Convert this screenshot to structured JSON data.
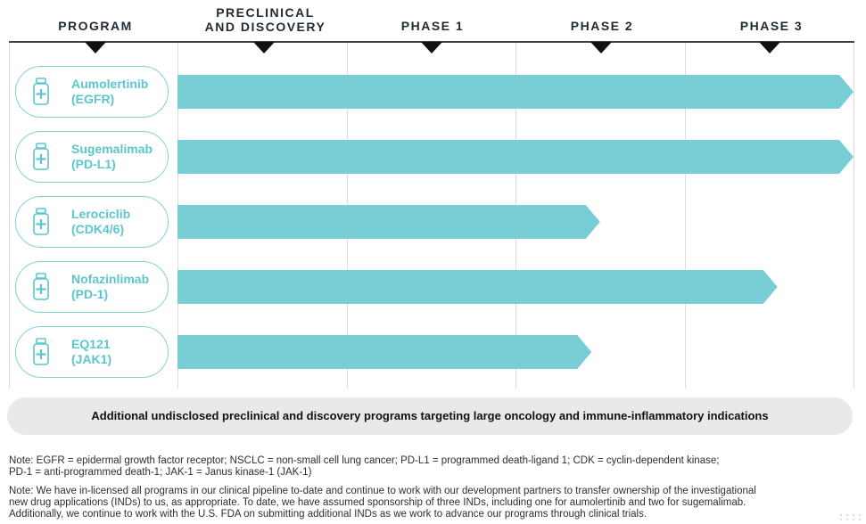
{
  "headers": {
    "program": "PROGRAM",
    "preclinical_line1": "PRECLINICAL",
    "preclinical_line2": "AND DISCOVERY",
    "phase1": "PHASE 1",
    "phase2": "PHASE 2",
    "phase3": "PHASE 3"
  },
  "chart_data": {
    "type": "bar",
    "orientation": "horizontal",
    "stages": [
      "PRECLINICAL AND DISCOVERY",
      "PHASE 1",
      "PHASE 2",
      "PHASE 3"
    ],
    "xlim": [
      0,
      4
    ],
    "programs": [
      {
        "name_line1": "Aumolertinib",
        "name_line2": "(EGFR)",
        "progress": 4.0
      },
      {
        "name_line1": "Sugemalimab",
        "name_line2": "(PD-L1)",
        "progress": 4.0
      },
      {
        "name_line1": "Lerociclib",
        "name_line2": "(CDK4/6)",
        "progress": 2.5
      },
      {
        "name_line1": "Nofazinlimab",
        "name_line2": "(PD-1)",
        "progress": 3.55
      },
      {
        "name_line1": "EQ121",
        "name_line2": "(JAK1)",
        "progress": 2.45
      }
    ],
    "bar_color": "#79ced5"
  },
  "banner": "Additional undisclosed preclinical and discovery programs targeting large oncology and immune-inflammatory indications",
  "notes": {
    "note1_line1": "Note: EGFR = epidermal growth factor receptor; NSCLC = non-small cell lung cancer; PD-L1 = programmed death-ligand 1; CDK = cyclin-dependent kinase;",
    "note1_line2": "PD-1 = anti-programmed death-1; JAK-1 = Janus kinase-1 (JAK-1)",
    "note2_line1": "Note: We have in-licensed all programs in our clinical pipeline to-date and continue to work with our development partners to transfer ownership of the investigational",
    "note2_line2": "new drug applications (INDs) to us, as appropriate. To date, we have assumed sponsorship of three INDs, including one for aumolertinib and two for sugemalimab.",
    "note2_line3": "Additionally, we continue to work with the U.S. FDA on submitting additional INDs as we work to advance our programs through clinical trials."
  },
  "icon_name": "medicine-bottle-icon"
}
